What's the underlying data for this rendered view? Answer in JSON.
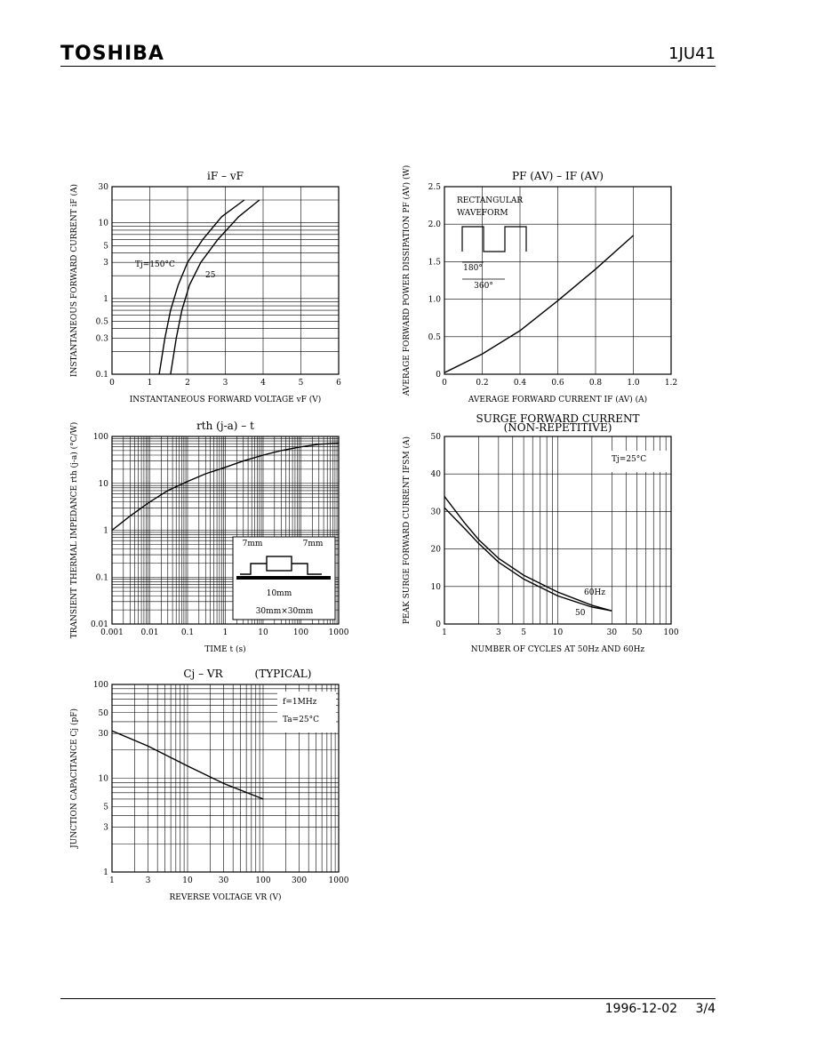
{
  "header": {
    "brand": "TOSHIBA",
    "part_number": "1JU41"
  },
  "footer": {
    "date": "1996-12-02",
    "page": "3/4"
  },
  "chart_data": [
    {
      "id": "if-vf",
      "type": "line",
      "title": "iF – vF",
      "xlabel": "INSTANTANEOUS FORWARD VOLTAGE  vF (V)",
      "ylabel": "INSTANTANEOUS FORWARD CURRENT  iF (A)",
      "x_scale": "linear",
      "y_scale": "log",
      "xlim": [
        0,
        6
      ],
      "ylim": [
        0.1,
        30
      ],
      "x_ticks": [
        0,
        1,
        2,
        3,
        4,
        5,
        6
      ],
      "x_tick_labels": [
        "0",
        "1",
        "2",
        "3",
        "4",
        "5",
        "6"
      ],
      "y_ticks": [
        0.1,
        0.3,
        0.5,
        1,
        3,
        5,
        10,
        30
      ],
      "y_tick_labels": [
        "0.1",
        "0.3",
        "0.5",
        "1",
        "3",
        "5",
        "10",
        "30"
      ],
      "series": [
        {
          "name": "Tj=150°C",
          "x": [
            1.25,
            1.4,
            1.55,
            1.75,
            2.0,
            2.4,
            2.9,
            3.5
          ],
          "y": [
            0.1,
            0.3,
            0.7,
            1.5,
            3,
            6,
            12,
            20
          ]
        },
        {
          "name": "25",
          "x": [
            1.55,
            1.7,
            1.85,
            2.05,
            2.35,
            2.8,
            3.35,
            3.9
          ],
          "y": [
            0.1,
            0.3,
            0.7,
            1.5,
            3,
            6,
            12,
            20
          ]
        }
      ],
      "annotations": [
        "Tj=150°C",
        "25"
      ]
    },
    {
      "id": "pf-if",
      "type": "line",
      "title": "PF (AV) – IF (AV)",
      "xlabel": "AVERAGE FORWARD CURRENT  IF (AV) (A)",
      "ylabel": "AVERAGE FORWARD POWER DISSIPATION  PF (AV) (W)",
      "x_scale": "linear",
      "y_scale": "linear",
      "xlim": [
        0,
        1.2
      ],
      "ylim": [
        0,
        2.5
      ],
      "x_ticks": [
        0,
        0.2,
        0.4,
        0.6,
        0.8,
        1.0,
        1.2
      ],
      "x_tick_labels": [
        "0",
        "0.2",
        "0.4",
        "0.6",
        "0.8",
        "1.0",
        "1.2"
      ],
      "y_ticks": [
        0,
        0.5,
        1.0,
        1.5,
        2.0,
        2.5
      ],
      "y_tick_labels": [
        "0",
        "0.5",
        "1.0",
        "1.5",
        "2.0",
        "2.5"
      ],
      "series": [
        {
          "x": [
            0,
            0.2,
            0.4,
            0.6,
            0.8,
            1.0
          ],
          "y": [
            0.02,
            0.27,
            0.58,
            0.98,
            1.4,
            1.85
          ]
        }
      ],
      "annotations": [
        "RECTANGULAR",
        "WAVEFORM",
        "180°",
        "360°"
      ]
    },
    {
      "id": "rth-t",
      "type": "line",
      "title": "rth (j-a) – t",
      "xlabel": "TIME  t  (s)",
      "ylabel": "TRANSIENT THERMAL IMPEDANCE  rth (j-a) (°C/W)",
      "x_scale": "log",
      "y_scale": "log",
      "xlim": [
        0.001,
        1000
      ],
      "ylim": [
        0.01,
        100
      ],
      "x_ticks": [
        0.001,
        0.01,
        0.1,
        1,
        10,
        100,
        1000
      ],
      "x_tick_labels": [
        "0.001",
        "0.01",
        "0.1",
        "1",
        "10",
        "100",
        "1000"
      ],
      "y_ticks": [
        0.01,
        0.1,
        1,
        10,
        100
      ],
      "y_tick_labels": [
        "0.01",
        "0.1",
        "1",
        "10",
        "100"
      ],
      "series": [
        {
          "x": [
            0.001,
            0.003,
            0.01,
            0.03,
            0.1,
            0.3,
            1,
            3,
            10,
            30,
            100,
            300,
            1000
          ],
          "y": [
            1,
            2,
            4,
            7,
            11,
            16,
            22,
            30,
            40,
            50,
            60,
            68,
            72
          ]
        }
      ],
      "annotations": [
        "7mm",
        "7mm",
        "10mm",
        "30mm×30mm"
      ]
    },
    {
      "id": "ifsm",
      "type": "line",
      "title": "SURGE FORWARD CURRENT",
      "subtitle": "(NON-REPETITIVE)",
      "xlabel": "NUMBER OF CYCLES AT 50Hz AND 60Hz",
      "ylabel": "PEAK SURGE FORWARD CURRENT  IFSM (A)",
      "x_scale": "log",
      "y_scale": "linear",
      "xlim": [
        1,
        100
      ],
      "ylim": [
        0,
        50
      ],
      "x_ticks": [
        1,
        3,
        5,
        10,
        30,
        50,
        100
      ],
      "x_tick_labels": [
        "1",
        "3",
        "5",
        "10",
        "30",
        "50",
        "100"
      ],
      "y_ticks": [
        0,
        10,
        20,
        30,
        40,
        50
      ],
      "y_tick_labels": [
        "0",
        "10",
        "20",
        "30",
        "40",
        "50"
      ],
      "series": [
        {
          "name": "60Hz",
          "x": [
            1,
            1.5,
            2,
            3,
            5,
            10,
            20,
            30
          ],
          "y": [
            34,
            27,
            22.5,
            17.5,
            13,
            8.5,
            5,
            3.5
          ]
        },
        {
          "name": "50",
          "x": [
            1,
            1.5,
            2,
            3,
            5,
            10,
            20,
            30
          ],
          "y": [
            31,
            25.5,
            21.5,
            16.5,
            12,
            7.5,
            4.5,
            3.5
          ]
        }
      ],
      "annotations": [
        "Tj=25°C",
        "60Hz",
        "50"
      ]
    },
    {
      "id": "cj-vr",
      "type": "line",
      "title": "Cj – VR",
      "subtitle": "(TYPICAL)",
      "xlabel": "REVERSE VOLTAGE  VR  (V)",
      "ylabel": "JUNCTION CAPACITANCE  Cj  (pF)",
      "x_scale": "log",
      "y_scale": "log",
      "xlim": [
        1,
        1000
      ],
      "ylim": [
        1,
        100
      ],
      "x_ticks": [
        1,
        3,
        10,
        30,
        100,
        300,
        1000
      ],
      "x_tick_labels": [
        "1",
        "3",
        "10",
        "30",
        "100",
        "300",
        "1000"
      ],
      "y_ticks": [
        1,
        3,
        5,
        10,
        30,
        50,
        100
      ],
      "y_tick_labels": [
        "1",
        "3",
        "5",
        "10",
        "30",
        "50",
        "100"
      ],
      "series": [
        {
          "x": [
            1,
            3,
            10,
            30,
            100
          ],
          "y": [
            32,
            22,
            13.5,
            8.8,
            6
          ]
        }
      ],
      "annotations": [
        "f=1MHz",
        "Ta=25°C"
      ]
    }
  ]
}
